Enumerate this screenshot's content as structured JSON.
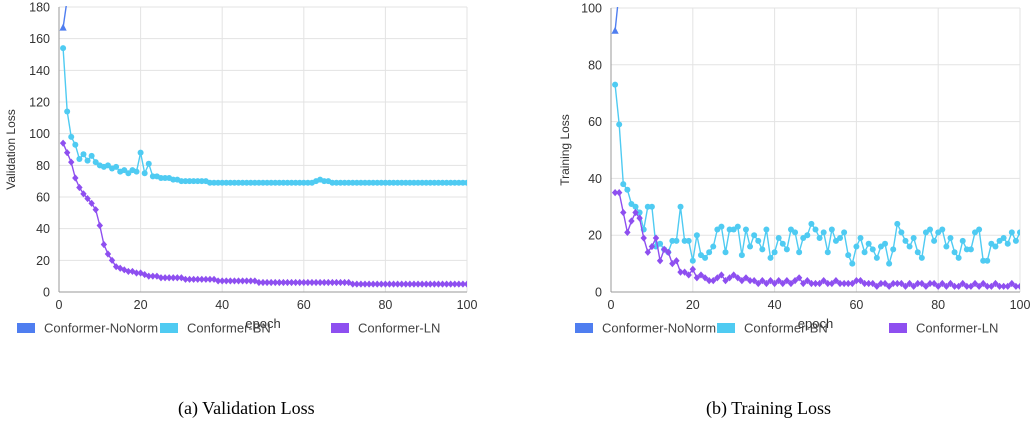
{
  "colors": {
    "nonorm": "#4f7ef0",
    "bn": "#4fcbf2",
    "ln": "#8e4ff0",
    "grid": "#e3e3e3",
    "axis": "#9a9a9a"
  },
  "legend": [
    "Conformer-NoNorm",
    "Conformer-BN",
    "Conformer-LN"
  ],
  "chart_data": [
    {
      "type": "line",
      "xlabel": "epoch",
      "ylabel": "Validation Loss",
      "xlim": [
        0,
        100
      ],
      "ylim": [
        0,
        180
      ],
      "xticks": [
        "0",
        "20",
        "40",
        "60",
        "80",
        "100"
      ],
      "yticks": [
        "0",
        "20",
        "40",
        "60",
        "80",
        "100",
        "120",
        "140",
        "160",
        "180"
      ],
      "grid": true,
      "legend_position": "bottom",
      "caption": "(a)  Validation Loss",
      "series": [
        {
          "name": "Conformer-NoNorm",
          "marker": "triangle",
          "x": [
            1,
            2
          ],
          "y": [
            167,
            185
          ]
        },
        {
          "name": "Conformer-BN",
          "marker": "circle",
          "x": [
            1,
            2,
            3,
            4,
            5,
            6,
            7,
            8,
            9,
            10,
            11,
            12,
            13,
            14,
            15,
            16,
            17,
            18,
            19,
            20,
            21,
            22,
            23,
            24,
            25,
            26,
            27,
            28,
            29,
            30,
            31,
            32,
            33,
            34,
            35,
            36,
            37,
            38,
            39,
            40,
            41,
            42,
            43,
            44,
            45,
            46,
            47,
            48,
            49,
            50,
            51,
            52,
            53,
            54,
            55,
            56,
            57,
            58,
            59,
            60,
            61,
            62,
            63,
            64,
            65,
            66,
            67,
            68,
            69,
            70,
            71,
            72,
            73,
            74,
            75,
            76,
            77,
            78,
            79,
            80,
            81,
            82,
            83,
            84,
            85,
            86,
            87,
            88,
            89,
            90,
            91,
            92,
            93,
            94,
            95,
            96,
            97,
            98,
            99,
            100
          ],
          "y": [
            154,
            114,
            98,
            93,
            84,
            87,
            83,
            86,
            82,
            80,
            79,
            80,
            78,
            79,
            76,
            77,
            75,
            77,
            76,
            88,
            75,
            81,
            73,
            73,
            72,
            72,
            72,
            71,
            71,
            70,
            70,
            70,
            70,
            70,
            70,
            70,
            69,
            69,
            69,
            69,
            69,
            69,
            69,
            69,
            69,
            69,
            69,
            69,
            69,
            69,
            69,
            69,
            69,
            69,
            69,
            69,
            69,
            69,
            69,
            69,
            69,
            69,
            70,
            71,
            70,
            70,
            69,
            69,
            69,
            69,
            69,
            69,
            69,
            69,
            69,
            69,
            69,
            69,
            69,
            69,
            69,
            69,
            69,
            69,
            69,
            69,
            69,
            69,
            69,
            69,
            69,
            69,
            69,
            69,
            69,
            69,
            69,
            69,
            69,
            69
          ]
        },
        {
          "name": "Conformer-LN",
          "marker": "diamond",
          "x": [
            1,
            2,
            3,
            4,
            5,
            6,
            7,
            8,
            9,
            10,
            11,
            12,
            13,
            14,
            15,
            16,
            17,
            18,
            19,
            20,
            21,
            22,
            23,
            24,
            25,
            26,
            27,
            28,
            29,
            30,
            31,
            32,
            33,
            34,
            35,
            36,
            37,
            38,
            39,
            40,
            41,
            42,
            43,
            44,
            45,
            46,
            47,
            48,
            49,
            50,
            51,
            52,
            53,
            54,
            55,
            56,
            57,
            58,
            59,
            60,
            61,
            62,
            63,
            64,
            65,
            66,
            67,
            68,
            69,
            70,
            71,
            72,
            73,
            74,
            75,
            76,
            77,
            78,
            79,
            80,
            81,
            82,
            83,
            84,
            85,
            86,
            87,
            88,
            89,
            90,
            91,
            92,
            93,
            94,
            95,
            96,
            97,
            98,
            99,
            100
          ],
          "y": [
            94,
            88,
            82,
            72,
            66,
            62,
            59,
            56,
            52,
            42,
            30,
            24,
            20,
            16,
            15,
            14,
            13,
            13,
            12,
            12,
            11,
            10,
            10,
            10,
            9,
            9,
            9,
            9,
            9,
            9,
            8,
            8,
            8,
            8,
            8,
            8,
            8,
            8,
            7,
            7,
            7,
            7,
            7,
            7,
            7,
            7,
            7,
            7,
            6,
            6,
            6,
            6,
            6,
            6,
            6,
            6,
            6,
            6,
            6,
            6,
            6,
            6,
            6,
            6,
            6,
            6,
            6,
            6,
            6,
            6,
            6,
            5,
            5,
            5,
            5,
            5,
            5,
            5,
            5,
            5,
            5,
            5,
            5,
            5,
            5,
            5,
            5,
            5,
            5,
            5,
            5,
            5,
            5,
            5,
            5,
            5,
            5,
            5,
            5,
            5
          ]
        }
      ]
    },
    {
      "type": "line",
      "xlabel": "epoch",
      "ylabel": "Training Loss",
      "xlim": [
        0,
        100
      ],
      "ylim": [
        0,
        100
      ],
      "xticks": [
        "0",
        "20",
        "40",
        "60",
        "80",
        "100"
      ],
      "yticks": [
        "0",
        "20",
        "40",
        "60",
        "80",
        "100"
      ],
      "grid": true,
      "legend_position": "bottom",
      "caption": "(b)  Training Loss",
      "series": [
        {
          "name": "Conformer-NoNorm",
          "marker": "triangle",
          "x": [
            1,
            2
          ],
          "y": [
            92,
            106
          ]
        },
        {
          "name": "Conformer-BN",
          "marker": "circle",
          "x": [
            1,
            2,
            3,
            4,
            5,
            6,
            7,
            8,
            9,
            10,
            11,
            12,
            13,
            14,
            15,
            16,
            17,
            18,
            19,
            20,
            21,
            22,
            23,
            24,
            25,
            26,
            27,
            28,
            29,
            30,
            31,
            32,
            33,
            34,
            35,
            36,
            37,
            38,
            39,
            40,
            41,
            42,
            43,
            44,
            45,
            46,
            47,
            48,
            49,
            50,
            51,
            52,
            53,
            54,
            55,
            56,
            57,
            58,
            59,
            60,
            61,
            62,
            63,
            64,
            65,
            66,
            67,
            68,
            69,
            70,
            71,
            72,
            73,
            74,
            75,
            76,
            77,
            78,
            79,
            80,
            81,
            82,
            83,
            84,
            85,
            86,
            87,
            88,
            89,
            90,
            91,
            92,
            93,
            94,
            95,
            96,
            97,
            98,
            99,
            100
          ],
          "y": [
            73,
            59,
            38,
            36,
            31,
            30,
            28,
            22,
            30,
            30,
            16,
            17,
            15,
            14,
            18,
            18,
            30,
            18,
            18,
            11,
            20,
            13,
            12,
            14,
            16,
            22,
            23,
            14,
            22,
            22,
            23,
            13,
            22,
            16,
            20,
            18,
            15,
            22,
            12,
            14,
            19,
            17,
            15,
            22,
            21,
            14,
            19,
            20,
            24,
            22,
            19,
            21,
            14,
            22,
            18,
            19,
            21,
            13,
            10,
            16,
            19,
            14,
            17,
            15,
            12,
            16,
            17,
            10,
            15,
            24,
            21,
            18,
            16,
            19,
            14,
            12,
            21,
            22,
            18,
            21,
            22,
            16,
            19,
            14,
            12,
            18,
            15,
            15,
            21,
            22,
            11,
            11,
            17,
            16,
            18,
            19,
            17,
            21,
            18,
            21
          ]
        },
        {
          "name": "Conformer-LN",
          "marker": "diamond",
          "x": [
            1,
            2,
            3,
            4,
            5,
            6,
            7,
            8,
            9,
            10,
            11,
            12,
            13,
            14,
            15,
            16,
            17,
            18,
            19,
            20,
            21,
            22,
            23,
            24,
            25,
            26,
            27,
            28,
            29,
            30,
            31,
            32,
            33,
            34,
            35,
            36,
            37,
            38,
            39,
            40,
            41,
            42,
            43,
            44,
            45,
            46,
            47,
            48,
            49,
            50,
            51,
            52,
            53,
            54,
            55,
            56,
            57,
            58,
            59,
            60,
            61,
            62,
            63,
            64,
            65,
            66,
            67,
            68,
            69,
            70,
            71,
            72,
            73,
            74,
            75,
            76,
            77,
            78,
            79,
            80,
            81,
            82,
            83,
            84,
            85,
            86,
            87,
            88,
            89,
            90,
            91,
            92,
            93,
            94,
            95,
            96,
            97,
            98,
            99,
            100
          ],
          "y": [
            35,
            35,
            28,
            21,
            25,
            28,
            26,
            19,
            14,
            16,
            19,
            11,
            15,
            14,
            10,
            11,
            7,
            7,
            6,
            8,
            5,
            6,
            5,
            4,
            4,
            5,
            6,
            4,
            5,
            6,
            5,
            4,
            5,
            4,
            4,
            3,
            4,
            3,
            4,
            3,
            4,
            3,
            4,
            3,
            4,
            5,
            3,
            4,
            3,
            3,
            3,
            4,
            3,
            3,
            4,
            3,
            3,
            3,
            3,
            4,
            4,
            3,
            3,
            3,
            2,
            3,
            3,
            2,
            3,
            3,
            3,
            2,
            3,
            2,
            3,
            3,
            2,
            3,
            3,
            2,
            3,
            2,
            3,
            2,
            2,
            3,
            2,
            2,
            3,
            2,
            3,
            2,
            2,
            3,
            2,
            2,
            2,
            3,
            2,
            2
          ]
        }
      ]
    }
  ]
}
